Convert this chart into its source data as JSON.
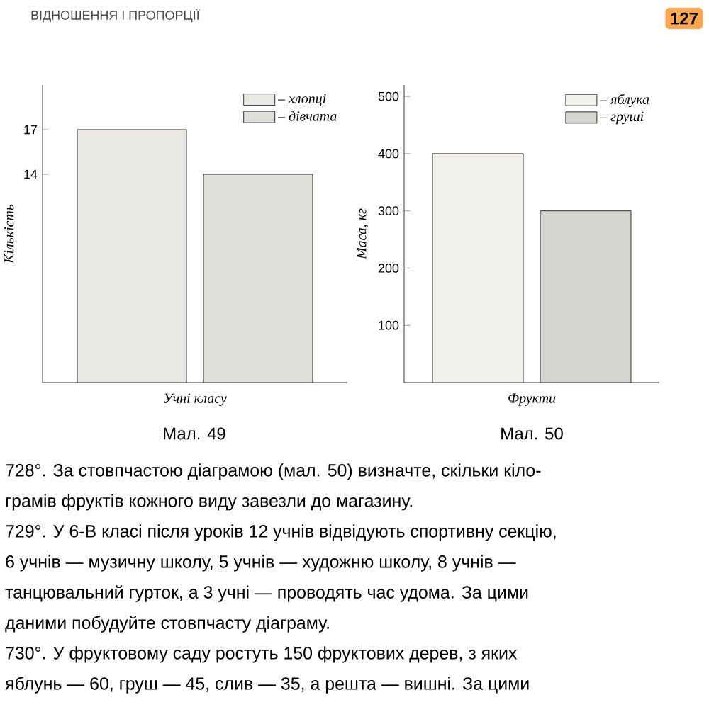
{
  "chart_data": [
    {
      "type": "bar",
      "categories": [
        null
      ],
      "xlabel": "Учні класу",
      "ylabel": "Кількість",
      "ylim": [
        0,
        20
      ],
      "yticks": [
        14,
        17
      ],
      "legend": "top right",
      "series": [
        {
          "name": "– хлопці",
          "color": "#eae8e2",
          "values": [
            17
          ]
        },
        {
          "name": "– дівчата",
          "color": "#e2e0da",
          "values": [
            14
          ]
        }
      ],
      "annotations": [
        "Мал. 49"
      ]
    },
    {
      "type": "bar",
      "categories": [
        null
      ],
      "xlabel": "Фрукти",
      "ylabel": "Маса, кг",
      "ylim": [
        0,
        520
      ],
      "yticks": [
        100,
        200,
        300,
        400,
        500
      ],
      "legend": "top right",
      "series": [
        {
          "name": "– яблука",
          "color": "#f2f0ea",
          "values": [
            400
          ]
        },
        {
          "name": "– груші",
          "color": "#d6d4ce",
          "values": [
            300
          ]
        }
      ],
      "annotations": [
        "Мал. 50"
      ]
    },
    {
      "type": "other",
      "annotations": [
        "ВІДНОШЕННЯ І ПРОПОРЦІЇ",
        "127",
        "728°. За стовпчастою діаграмою (мал. 50) визначте, скільки кіло-",
        "грамів фруктів кожного виду завезли до магазину.",
        "729°. У 6-В класі після уроків 12 учнів відвідують спортивну секцію,",
        "6 учнів — музичну школу, 5 учнів — художню школу, 8 учнів —",
        "танцювальний гурток, а 3 учні — проводять час удома. За цими",
        "даними побудуйте стовпчасту діаграму.",
        "730°. У фруктовому саду ростуть 150 фруктових дерев, з яких",
        "яблунь — 60, груш — 45, слив — 35, а решта — вишні. За цими"
      ]
    }
  ]
}
